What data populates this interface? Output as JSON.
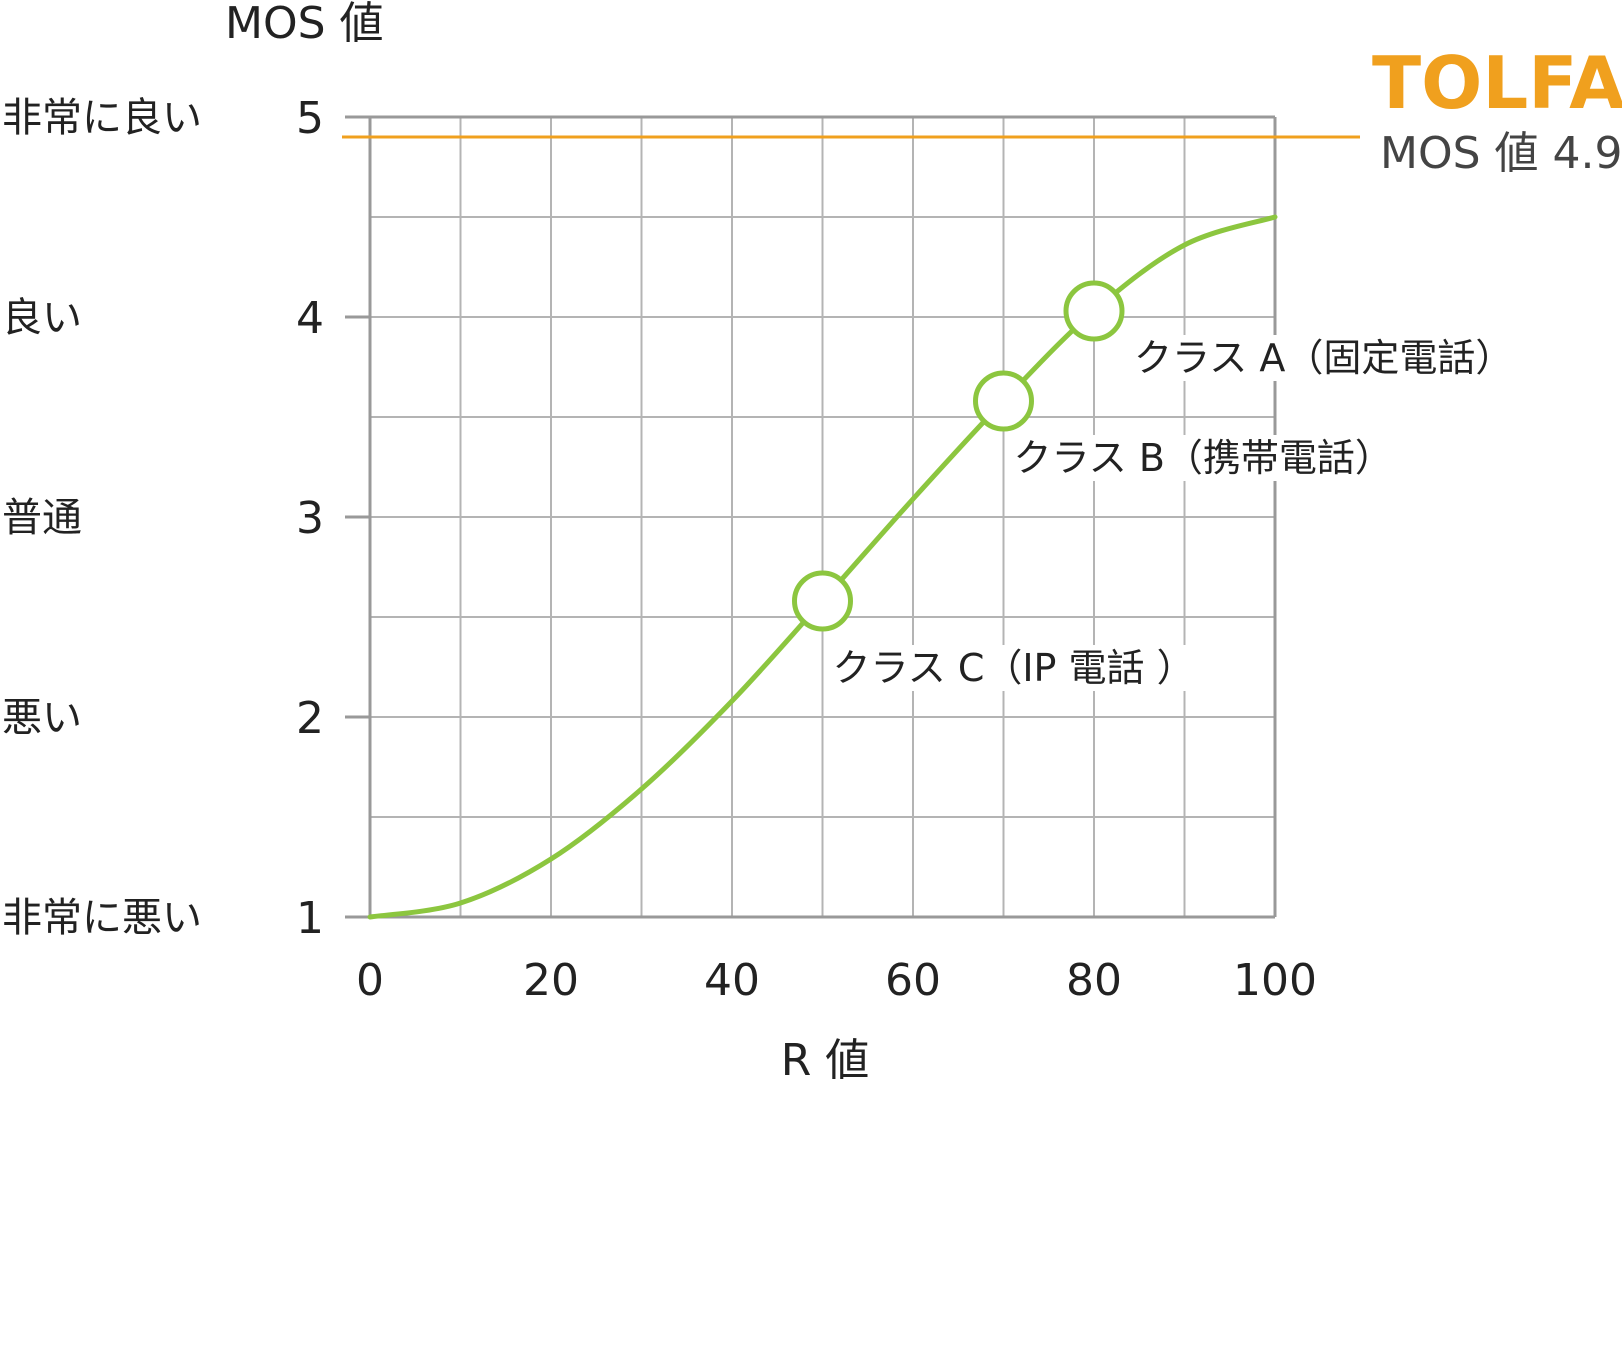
{
  "chart_data": {
    "type": "line",
    "title": "",
    "xlabel": "R 値",
    "ylabel": "MOS 値",
    "xlim": [
      0,
      100
    ],
    "ylim": [
      1,
      5
    ],
    "x_ticks": [
      "0",
      "20",
      "40",
      "60",
      "80",
      "100"
    ],
    "y_ticks": [
      "1",
      "2",
      "3",
      "4",
      "5"
    ],
    "grid": true,
    "y_quality_labels": [
      {
        "value": 5,
        "label": "非常に良い"
      },
      {
        "value": 4,
        "label": "良い"
      },
      {
        "value": 3,
        "label": "普通"
      },
      {
        "value": 2,
        "label": "悪い"
      },
      {
        "value": 1,
        "label": "非常に悪い"
      }
    ],
    "curve": {
      "x": [
        0,
        10,
        20,
        30,
        40,
        50,
        60,
        70,
        80,
        90,
        100
      ],
      "y": [
        1.0,
        1.07,
        1.29,
        1.64,
        2.08,
        2.58,
        3.09,
        3.58,
        4.03,
        4.36,
        4.5
      ],
      "color": "#8cc63f"
    },
    "points": [
      {
        "x": 50,
        "y": 2.58,
        "label": "クラス C（IP 電話 ）"
      },
      {
        "x": 70,
        "y": 3.58,
        "label": "クラス B（携帯電話）"
      },
      {
        "x": 80,
        "y": 4.03,
        "label": "クラス A（固定電話）"
      }
    ],
    "reference_line": {
      "y": 4.9,
      "label": "MOS 値 4.9",
      "color": "#f0a01e"
    },
    "brand": {
      "text": "TOLFA",
      "color": "#f0a01e"
    }
  }
}
